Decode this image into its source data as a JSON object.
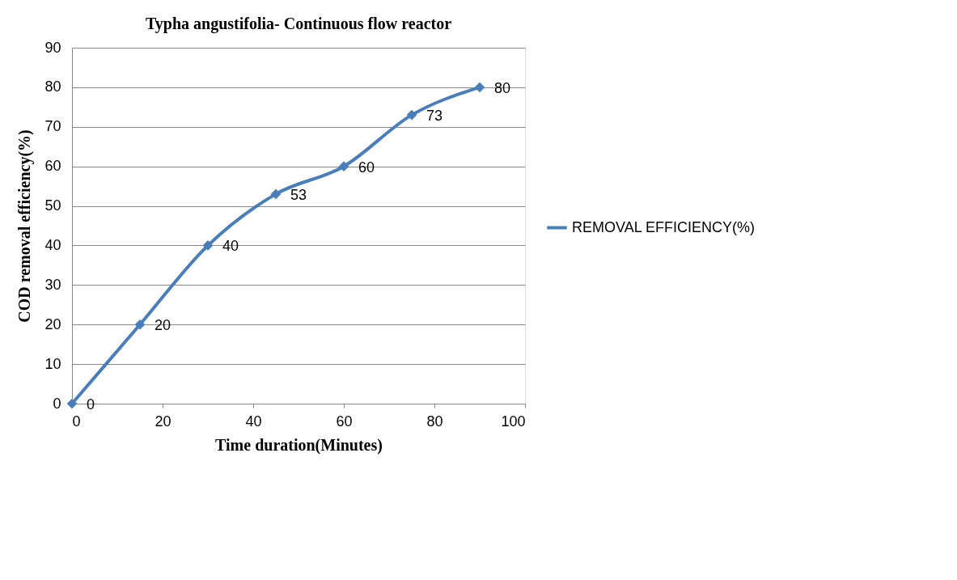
{
  "chart_data": {
    "type": "line",
    "title": "Typha angustifolia-  Continuous flow reactor",
    "xlabel": "Time duration(Minutes)",
    "ylabel": "COD removal efficiency(%)",
    "x": [
      0,
      15,
      30,
      45,
      60,
      75,
      90
    ],
    "series": [
      {
        "name": "REMOVAL EFFICIENCY(%)",
        "color": "#4a7ebb",
        "values": [
          0,
          20,
          40,
          53,
          60,
          73,
          80
        ]
      }
    ],
    "xlim": [
      0,
      100
    ],
    "xticks": [
      0,
      20,
      40,
      60,
      80,
      100
    ],
    "ylim": [
      0,
      90
    ],
    "yticks": [
      0,
      10,
      20,
      30,
      40,
      50,
      60,
      70,
      80,
      90
    ],
    "grid": "y",
    "legend": "right",
    "marker": "diamond",
    "line_style": "solid",
    "data_labels": true
  }
}
